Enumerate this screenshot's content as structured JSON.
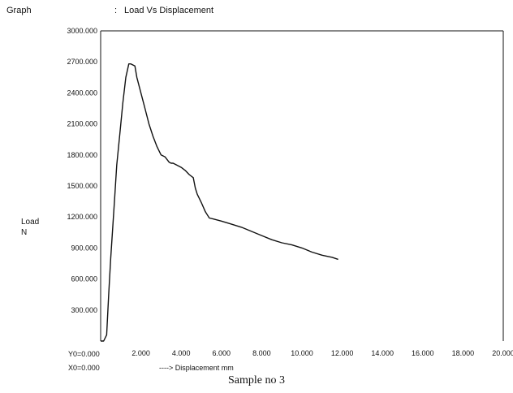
{
  "header": {
    "label": "Graph",
    "separator": ":",
    "title": "Load Vs Displacement"
  },
  "caption": "Sample no 3",
  "y_axis_label": [
    "Load",
    "N"
  ],
  "origin": {
    "y0": "Y0=0.000",
    "x0": "X0=0.000"
  },
  "chart_data": {
    "type": "line",
    "title": "Load Vs Displacement",
    "xlabel": "----> Displacement mm",
    "ylabel": "Load N",
    "xlim": [
      0,
      20
    ],
    "ylim": [
      0,
      3000
    ],
    "x_ticks": [
      2,
      4,
      6,
      8,
      10,
      12,
      14,
      16,
      18,
      20
    ],
    "x_tick_labels": [
      "2.000",
      "4.000",
      "6.000",
      "8.000",
      "10.000",
      "12.000",
      "14.000",
      "16.000",
      "18.000",
      "20.000"
    ],
    "y_ticks": [
      300,
      600,
      900,
      1200,
      1500,
      1800,
      2100,
      2400,
      2700,
      3000
    ],
    "y_tick_labels": [
      "300.000",
      "600.000",
      "900.000",
      "1200.000",
      "1500.000",
      "1800.000",
      "2100.000",
      "2400.000",
      "2700.000",
      "3000.000"
    ],
    "grid": false,
    "series": [
      {
        "x": [
          0.0,
          0.15,
          0.3,
          0.4,
          0.5,
          0.6,
          0.7,
          0.8,
          0.95,
          1.1,
          1.25,
          1.4,
          1.5,
          1.7,
          1.8,
          2.0,
          2.2,
          2.4,
          2.6,
          2.8,
          3.0,
          3.2,
          3.4,
          3.5,
          3.6,
          3.8,
          4.0,
          4.2,
          4.4,
          4.6,
          4.7,
          4.8,
          5.0,
          5.2,
          5.4,
          5.6,
          6.0,
          6.5,
          7.0,
          7.5,
          8.0,
          8.5,
          9.0,
          9.5,
          10.0,
          10.5,
          11.0,
          11.5,
          11.8
        ],
        "y": [
          0,
          0,
          60,
          450,
          800,
          1100,
          1400,
          1700,
          2000,
          2300,
          2550,
          2680,
          2680,
          2660,
          2550,
          2400,
          2250,
          2100,
          1980,
          1880,
          1800,
          1780,
          1730,
          1720,
          1720,
          1700,
          1680,
          1650,
          1610,
          1580,
          1480,
          1420,
          1340,
          1250,
          1190,
          1180,
          1160,
          1130,
          1100,
          1060,
          1020,
          980,
          950,
          930,
          900,
          860,
          830,
          810,
          790
        ]
      }
    ]
  }
}
